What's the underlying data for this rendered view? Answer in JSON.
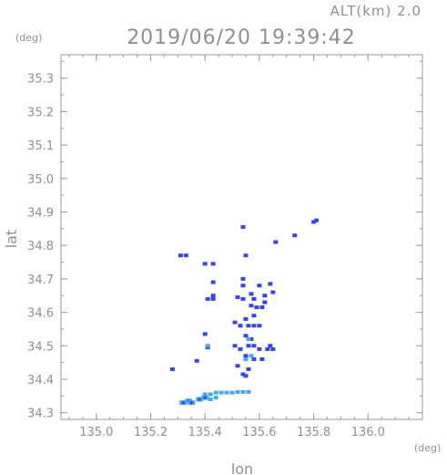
{
  "chart_data": {
    "type": "scatter",
    "title": "2019/06/20 19:39:42",
    "altitude_label": "ALT(km) 2.0",
    "xlabel": "lon",
    "ylabel": "lat",
    "x_unit": "(deg)",
    "y_unit": "(deg)",
    "xlim": [
      134.87,
      136.2
    ],
    "ylim": [
      34.28,
      35.37
    ],
    "xticks": [
      "135.0",
      "135.2",
      "135.4",
      "135.6",
      "135.8",
      "136.0"
    ],
    "yticks": [
      "34.3",
      "34.4",
      "34.5",
      "34.6",
      "34.7",
      "34.8",
      "34.9",
      "35.0",
      "35.1",
      "35.2",
      "35.3"
    ],
    "grid": false,
    "colors": {
      "main": "#3344ee",
      "light": "#44aaee",
      "frame": "#999999"
    },
    "series": [
      {
        "color": "main",
        "points": [
          [
            135.31,
            34.77
          ],
          [
            135.33,
            34.77
          ],
          [
            135.4,
            34.745
          ],
          [
            135.43,
            34.745
          ],
          [
            135.41,
            34.64
          ],
          [
            135.43,
            34.64
          ],
          [
            135.43,
            34.65
          ],
          [
            135.4,
            34.535
          ],
          [
            135.41,
            34.495
          ],
          [
            135.37,
            34.455
          ],
          [
            135.28,
            34.43
          ],
          [
            135.55,
            34.77
          ],
          [
            135.54,
            34.7
          ],
          [
            135.54,
            34.68
          ],
          [
            135.57,
            34.655
          ],
          [
            135.6,
            34.68
          ],
          [
            135.64,
            34.685
          ],
          [
            135.65,
            34.66
          ],
          [
            135.62,
            34.65
          ],
          [
            135.57,
            34.62
          ],
          [
            135.59,
            34.615
          ],
          [
            135.61,
            34.615
          ],
          [
            135.52,
            34.645
          ],
          [
            135.54,
            34.64
          ],
          [
            135.55,
            34.58
          ],
          [
            135.58,
            34.59
          ],
          [
            135.51,
            34.57
          ],
          [
            135.53,
            34.56
          ],
          [
            135.56,
            34.56
          ],
          [
            135.58,
            34.56
          ],
          [
            135.6,
            34.56
          ],
          [
            135.55,
            34.53
          ],
          [
            135.57,
            34.52
          ],
          [
            135.56,
            34.5
          ],
          [
            135.58,
            34.5
          ],
          [
            135.6,
            34.49
          ],
          [
            135.53,
            34.49
          ],
          [
            135.51,
            34.5
          ],
          [
            135.55,
            34.47
          ],
          [
            135.58,
            34.46
          ],
          [
            135.61,
            34.46
          ],
          [
            135.64,
            34.5
          ],
          [
            135.65,
            34.49
          ],
          [
            135.63,
            34.49
          ],
          [
            135.56,
            34.43
          ],
          [
            135.52,
            34.44
          ],
          [
            135.54,
            34.415
          ],
          [
            135.55,
            34.41
          ],
          [
            135.81,
            34.875
          ],
          [
            135.8,
            34.87
          ],
          [
            135.73,
            34.83
          ],
          [
            135.66,
            34.81
          ],
          [
            135.54,
            34.855
          ],
          [
            135.43,
            34.69
          ],
          [
            135.58,
            34.64
          ],
          [
            135.62,
            34.63
          ]
        ]
      },
      {
        "color": "light",
        "points": [
          [
            135.41,
            34.5
          ],
          [
            135.55,
            34.46
          ],
          [
            135.57,
            34.47
          ],
          [
            135.56,
            34.52
          ],
          [
            135.4,
            34.355
          ],
          [
            135.42,
            34.355
          ],
          [
            135.44,
            34.36
          ],
          [
            135.46,
            34.36
          ],
          [
            135.48,
            34.36
          ],
          [
            135.5,
            34.36
          ],
          [
            135.52,
            34.362
          ],
          [
            135.54,
            34.362
          ],
          [
            135.56,
            34.362
          ],
          [
            135.42,
            34.34
          ],
          [
            135.44,
            34.345
          ]
        ]
      }
    ],
    "blobs": [
      [
        135.32,
        34.33
      ],
      [
        135.34,
        34.335
      ],
      [
        135.35,
        34.33
      ],
      [
        135.38,
        34.34
      ],
      [
        135.4,
        34.345
      ]
    ]
  }
}
